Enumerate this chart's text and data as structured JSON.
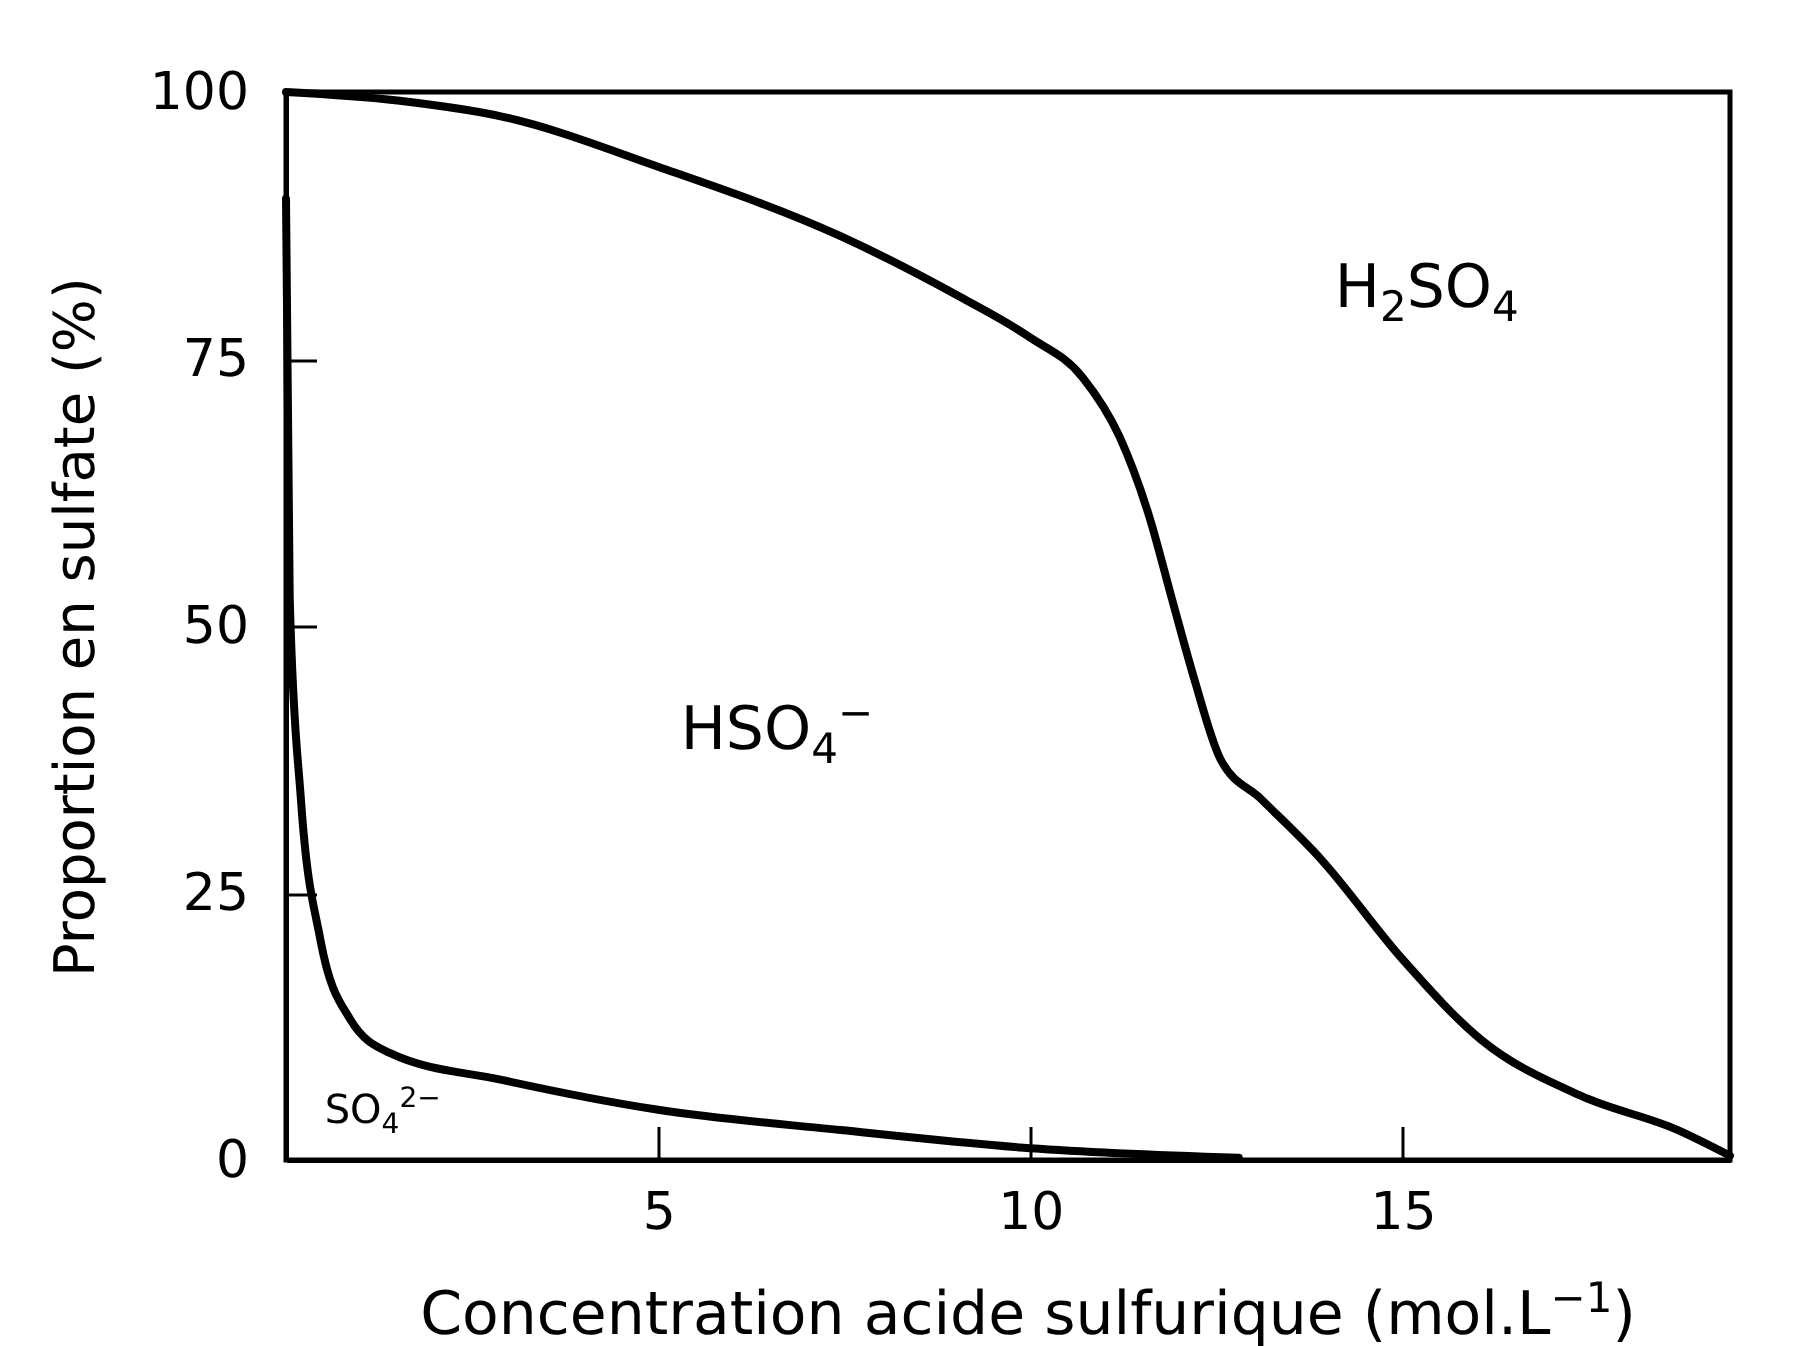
{
  "chart_data": {
    "type": "line",
    "xlabel": "Concentration acide sulfurique (mol.L$^{−1}$)",
    "ylabel": "Proportion en sulfate (%)",
    "xlim": [
      0,
      19.4
    ],
    "xticks": [
      5,
      10,
      15
    ],
    "ylim": [
      0,
      100
    ],
    "yticks": [
      0,
      25,
      50,
      75,
      100
    ],
    "grid": false,
    "series": [
      {
        "color": "#000000",
        "x": [
          0,
          1.5,
          2.9,
          5,
          7.45,
          9.06,
          10,
          10.7,
          11.2,
          11.6,
          11.9,
          12.2,
          12.55,
          13.1,
          13.9,
          15,
          16.05,
          17.4,
          18.7,
          19.4
        ],
        "values": [
          100,
          99.2,
          97.7,
          93,
          86.5,
          80.8,
          77,
          73.3,
          67.7,
          60.2,
          52.6,
          45.1,
          37.6,
          33.8,
          28.2,
          18.8,
          11.3,
          6,
          2.8,
          0.4
        ]
      },
      {
        "color": "#000000",
        "x": [
          0,
          0.05,
          0.2,
          0.46,
          0.86,
          1.4,
          2.9,
          5,
          7.45,
          10,
          12.8
        ],
        "values": [
          90,
          52.6,
          33.8,
          20.7,
          13.2,
          10,
          7.5,
          4.7,
          2.8,
          1.1,
          0.2
        ]
      }
    ],
    "annotations": [
      "H$_{2}$SO$_{4}$",
      "HSO$_{4}$$^{−}$",
      "SO$_{4}$$^{2−}$"
    ]
  }
}
